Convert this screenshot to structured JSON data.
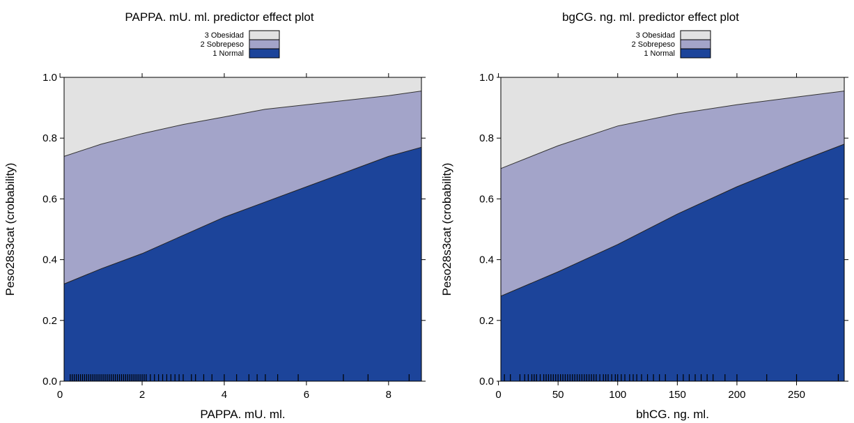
{
  "chart_data": [
    {
      "type": "area",
      "stacked": true,
      "title": "PAPPA. mU. ml. predictor effect plot",
      "xlabel": "PAPPA. mU. ml.",
      "ylabel": "Peso28s3cat (crobability)",
      "xlim": [
        0.1,
        8.8
      ],
      "ylim": [
        0,
        1
      ],
      "xticks": [
        "0",
        "2",
        "4",
        "6",
        "8"
      ],
      "yticks": [
        "0.0",
        "0.2",
        "0.4",
        "0.6",
        "0.8",
        "1.0"
      ],
      "legend": [
        "3 Obesidad",
        "2 Sobrepeso",
        "1 Normal"
      ],
      "legend_colors": [
        "#e2e2e2",
        "#a3a4c9",
        "#1c449a"
      ],
      "legend_placement": "top-center",
      "x": [
        0.1,
        1,
        2,
        3,
        4,
        5,
        6,
        7,
        8,
        8.8
      ],
      "series": [
        {
          "name": "1 Normal",
          "cumulative": [
            0.32,
            0.37,
            0.42,
            0.48,
            0.54,
            0.59,
            0.64,
            0.69,
            0.74,
            0.77
          ]
        },
        {
          "name": "2 Sobrepeso",
          "cumulative": [
            0.74,
            0.78,
            0.815,
            0.845,
            0.87,
            0.895,
            0.91,
            0.925,
            0.94,
            0.955
          ]
        },
        {
          "name": "3 Obesidad",
          "cumulative": [
            1,
            1,
            1,
            1,
            1,
            1,
            1,
            1,
            1,
            1
          ]
        }
      ],
      "rug": [
        0.25,
        0.3,
        0.35,
        0.4,
        0.45,
        0.5,
        0.55,
        0.6,
        0.65,
        0.7,
        0.75,
        0.8,
        0.85,
        0.9,
        0.95,
        1.0,
        1.05,
        1.1,
        1.15,
        1.2,
        1.25,
        1.3,
        1.35,
        1.4,
        1.45,
        1.5,
        1.55,
        1.6,
        1.65,
        1.7,
        1.75,
        1.8,
        1.85,
        1.9,
        1.95,
        2.0,
        2.05,
        2.1,
        2.2,
        2.3,
        2.4,
        2.5,
        2.6,
        2.7,
        2.8,
        2.9,
        3.0,
        3.2,
        3.3,
        3.5,
        3.7,
        4.0,
        4.3,
        4.6,
        4.8,
        5.0,
        5.3,
        5.8,
        6.9,
        7.5,
        8.5
      ]
    },
    {
      "type": "area",
      "stacked": true,
      "title": "bgCG. ng. ml. predictor effect plot",
      "xlabel": "bhCG. ng. ml.",
      "ylabel": "Peso28s3cat (crobability)",
      "xlim": [
        2,
        290
      ],
      "ylim": [
        0,
        1
      ],
      "xticks": [
        "0",
        "50",
        "100",
        "150",
        "200",
        "250"
      ],
      "yticks": [
        "0.0",
        "0.2",
        "0.4",
        "0.6",
        "0.8",
        "1.0"
      ],
      "legend": [
        "3 Obesidad",
        "2 Sobrepeso",
        "1 Normal"
      ],
      "legend_colors": [
        "#e2e2e2",
        "#a3a4c9",
        "#1c449a"
      ],
      "legend_placement": "top-center",
      "x": [
        2,
        50,
        100,
        150,
        200,
        250,
        290
      ],
      "series": [
        {
          "name": "1 Normal",
          "cumulative": [
            0.28,
            0.36,
            0.45,
            0.55,
            0.64,
            0.72,
            0.78
          ]
        },
        {
          "name": "2 Sobrepeso",
          "cumulative": [
            0.7,
            0.775,
            0.84,
            0.88,
            0.91,
            0.935,
            0.955
          ]
        },
        {
          "name": "3 Obesidad",
          "cumulative": [
            1,
            1,
            1,
            1,
            1,
            1,
            1
          ]
        }
      ],
      "rug": [
        5,
        10,
        18,
        22,
        25,
        28,
        30,
        32,
        35,
        38,
        40,
        42,
        44,
        46,
        48,
        50,
        52,
        54,
        56,
        58,
        60,
        62,
        64,
        66,
        68,
        70,
        72,
        74,
        76,
        78,
        80,
        82,
        85,
        88,
        90,
        92,
        95,
        98,
        100,
        103,
        106,
        110,
        113,
        116,
        120,
        125,
        130,
        135,
        140,
        150,
        155,
        160,
        165,
        170,
        175,
        180,
        190,
        200,
        225,
        250,
        285
      ]
    }
  ]
}
